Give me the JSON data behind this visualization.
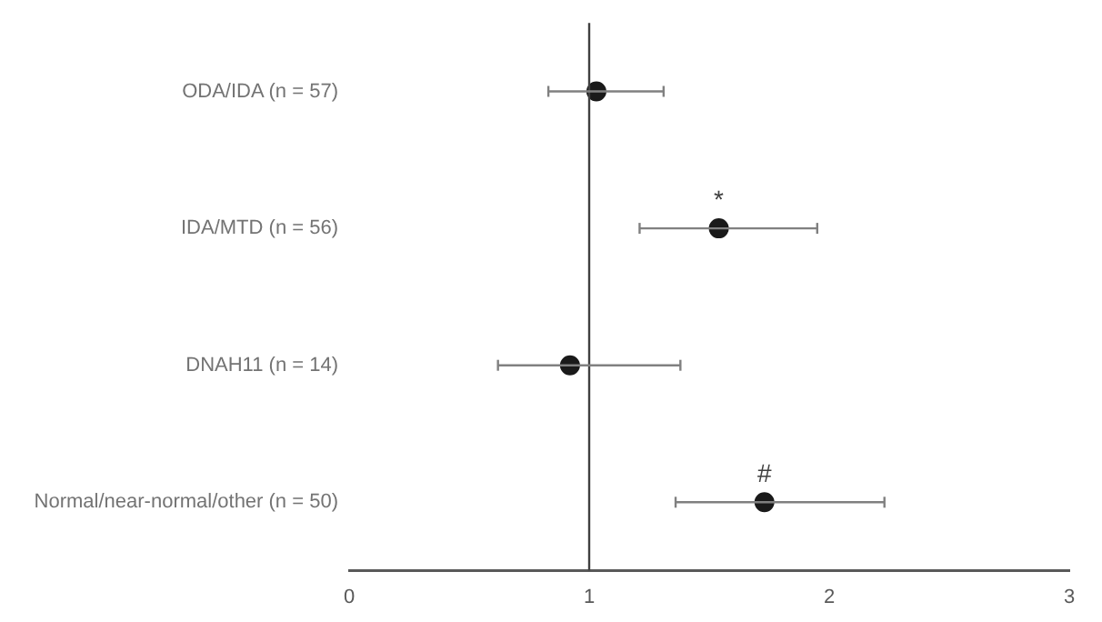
{
  "chart_data": {
    "type": "scatter",
    "categories": [
      "ODA/IDA (n = 57)",
      "IDA/MTD (n = 56)",
      "DNAH11 (n = 14)",
      "Normal/near-normal/other (n = 50)"
    ],
    "values": [
      1.03,
      1.54,
      0.92,
      1.73
    ],
    "errors": [
      [
        0.83,
        1.31
      ],
      [
        1.21,
        1.95
      ],
      [
        0.62,
        1.38
      ],
      [
        1.36,
        2.23
      ]
    ],
    "color": "#1a1a1a",
    "marker": "circle",
    "orientation": "horizontal",
    "xlim": [
      0,
      3
    ],
    "xticks": [
      0,
      1,
      2,
      3
    ],
    "grid": false,
    "legend": false,
    "ref_lines": [
      {
        "axis": "x",
        "value": 1,
        "color": "#404040"
      }
    ],
    "annotations": [
      {
        "text": "*",
        "x": 1.54,
        "y": "IDA/MTD (n = 56)"
      },
      {
        "text": "#",
        "x": 1.73,
        "y": "Normal/near-normal/other (n = 50)"
      }
    ]
  }
}
